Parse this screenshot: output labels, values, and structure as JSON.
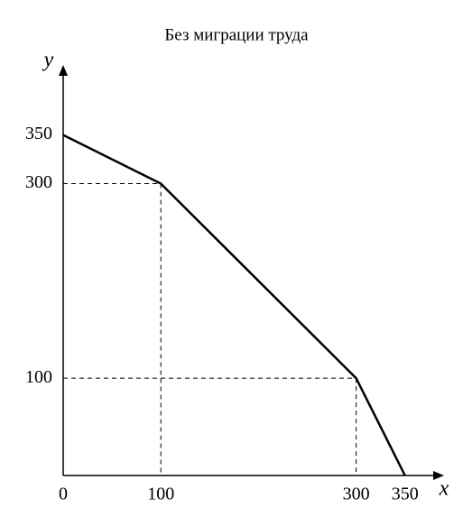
{
  "chart_data": {
    "type": "line",
    "title": "Без миграции труда",
    "x": [
      0,
      100,
      300,
      350
    ],
    "series": [
      {
        "color": "#000000",
        "values": [
          350,
          300,
          100,
          0
        ]
      }
    ],
    "xlabel": "x",
    "ylabel": "y",
    "xlim": [
      0,
      390
    ],
    "ylim": [
      0,
      422
    ],
    "xticks": [
      0,
      100,
      300,
      350
    ],
    "yticks": [
      100,
      300,
      350
    ],
    "grid": false
  }
}
